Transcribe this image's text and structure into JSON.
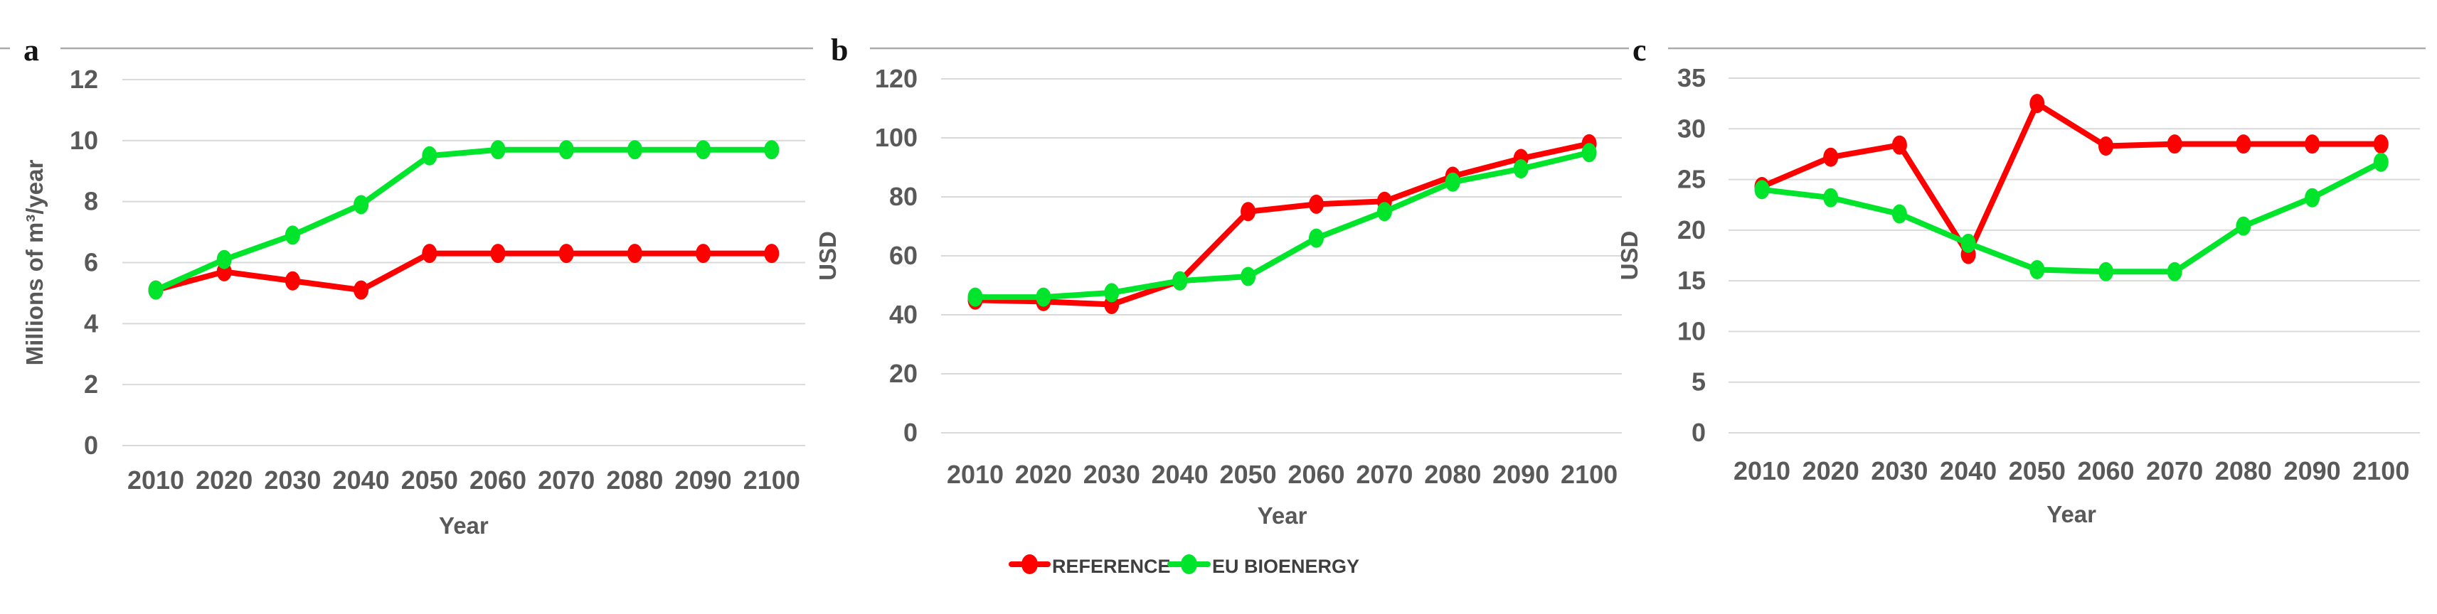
{
  "figure": {
    "background": "#ffffff",
    "gridline_color": "#d9d9d9",
    "top_border_color": "#ababab",
    "axis_text_color": "#595959",
    "reference_color": "#fe0000",
    "eu_bioenergy_color": "#00e52c"
  },
  "legend": {
    "position": "below-center",
    "items": [
      {
        "label": "REFERENCE",
        "color": "#fe0000",
        "marker": "line-with-dot"
      },
      {
        "label": "EU BIOENERGY",
        "color": "#00e52c",
        "marker": "line-with-dot"
      }
    ]
  },
  "chart_data": [
    {
      "type": "line",
      "panel_label": "a",
      "title": "",
      "x": [
        2010,
        2020,
        2030,
        2040,
        2050,
        2060,
        2070,
        2080,
        2090,
        2100
      ],
      "xlabel": "Year",
      "ylabel": "Millions of m³/year",
      "ylim": [
        0,
        12
      ],
      "ytick_step": 2,
      "grid": true,
      "series": [
        {
          "name": "REFERENCE",
          "color": "#fe0000",
          "values": [
            5.1,
            5.7,
            5.4,
            5.1,
            6.3,
            6.3,
            6.3,
            6.3,
            6.3,
            6.3
          ]
        },
        {
          "name": "EU BIOENERGY",
          "color": "#00e52c",
          "values": [
            5.1,
            6.1,
            6.9,
            7.9,
            9.5,
            9.7,
            9.7,
            9.7,
            9.7,
            9.7
          ]
        }
      ]
    },
    {
      "type": "line",
      "panel_label": "b",
      "title": "",
      "x": [
        2010,
        2020,
        2030,
        2040,
        2050,
        2060,
        2070,
        2080,
        2090,
        2100
      ],
      "xlabel": "Year",
      "ylabel": "USD",
      "ylim": [
        0,
        120
      ],
      "ytick_step": 20,
      "grid": true,
      "series": [
        {
          "name": "REFERENCE",
          "color": "#fe0000",
          "values": [
            45,
            44.5,
            43.5,
            51.5,
            75,
            77.5,
            78.5,
            87,
            93,
            98
          ]
        },
        {
          "name": "EU BIOENERGY",
          "color": "#00e52c",
          "values": [
            46,
            46,
            47.5,
            51.5,
            53,
            66,
            75,
            85,
            89.5,
            95
          ]
        }
      ]
    },
    {
      "type": "line",
      "panel_label": "c",
      "title": "",
      "x": [
        2010,
        2020,
        2030,
        2040,
        2050,
        2060,
        2070,
        2080,
        2090,
        2100
      ],
      "xlabel": "Year",
      "ylabel": "USD",
      "ylim": [
        0,
        35
      ],
      "ytick_step": 5,
      "grid": true,
      "series": [
        {
          "name": "REFERENCE",
          "color": "#fe0000",
          "values": [
            24.3,
            27.2,
            28.4,
            17.6,
            32.5,
            28.3,
            28.5,
            28.5,
            28.5,
            28.5
          ]
        },
        {
          "name": "EU BIOENERGY",
          "color": "#00e52c",
          "values": [
            24.0,
            23.2,
            21.6,
            18.7,
            16.1,
            15.9,
            15.9,
            20.4,
            23.2,
            26.7
          ]
        }
      ]
    }
  ]
}
